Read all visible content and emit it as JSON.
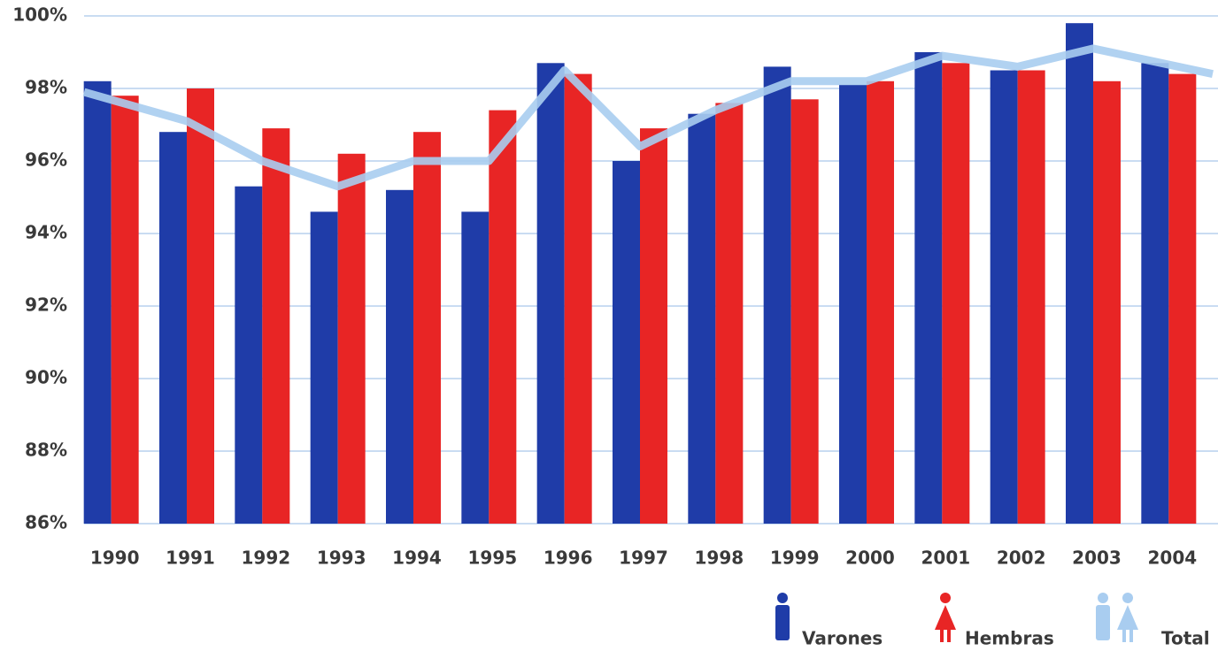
{
  "chart_data": {
    "type": "bar_line",
    "categories": [
      "1990",
      "1991",
      "1992",
      "1993",
      "1994",
      "1995",
      "1996",
      "1997",
      "1998",
      "1999",
      "2000",
      "2001",
      "2002",
      "2003",
      "2004"
    ],
    "series": [
      {
        "name": "Varones",
        "color": "#1f3ca8",
        "type": "bar",
        "values": [
          98.2,
          96.8,
          95.3,
          94.6,
          95.2,
          94.6,
          98.7,
          96.0,
          97.3,
          98.6,
          98.1,
          99.0,
          98.5,
          99.8,
          98.7
        ]
      },
      {
        "name": "Hembras",
        "color": "#e82525",
        "type": "bar",
        "values": [
          97.8,
          98.0,
          96.9,
          96.2,
          96.8,
          97.4,
          98.4,
          96.9,
          97.6,
          97.7,
          98.2,
          98.7,
          98.5,
          98.2,
          98.4
        ]
      },
      {
        "name": "Total",
        "color": "#a9cdf0",
        "type": "line",
        "values": [
          97.9,
          97.1,
          96.0,
          95.3,
          96.0,
          96.0,
          98.5,
          96.4,
          97.4,
          98.2,
          98.2,
          98.9,
          98.6,
          99.1,
          98.4
        ]
      }
    ],
    "ylim": [
      86,
      100
    ],
    "yticks": [
      {
        "value": 86,
        "label": "86%"
      },
      {
        "value": 88,
        "label": "88%"
      },
      {
        "value": 90,
        "label": "90%"
      },
      {
        "value": 92,
        "label": "92%"
      },
      {
        "value": 94,
        "label": "94%"
      },
      {
        "value": 96,
        "label": "96%"
      },
      {
        "value": 98,
        "label": "98%"
      },
      {
        "value": 100,
        "label": "100%"
      }
    ],
    "grid": true
  }
}
